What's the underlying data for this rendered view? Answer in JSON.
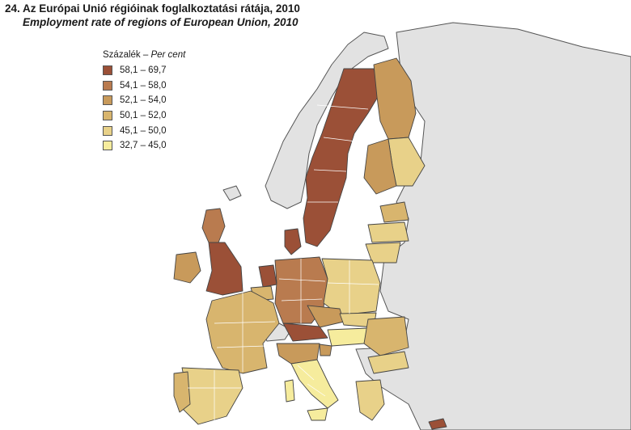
{
  "title": "24. Az Európai Unió régióinak foglalkoztatási rátája, 2010",
  "subtitle": "Employment rate of regions of European Union, 2010",
  "legend": {
    "title_hu": "Százalék – ",
    "title_en": "Per cent",
    "items": [
      {
        "label": "58,1 – 69,7",
        "color": "#9b5037"
      },
      {
        "label": "54,1 – 58,0",
        "color": "#b97b4f"
      },
      {
        "label": "52,1 – 54,0",
        "color": "#c89a5b"
      },
      {
        "label": "50,1 – 52,0",
        "color": "#d8b56e"
      },
      {
        "label": "45,1 – 50,0",
        "color": "#e8d189"
      },
      {
        "label": "32,7 – 45,0",
        "color": "#f6ec9d"
      }
    ]
  },
  "colors": {
    "non_eu": "#e2e2e2",
    "sea": "#ffffff",
    "border": "#555555"
  }
}
